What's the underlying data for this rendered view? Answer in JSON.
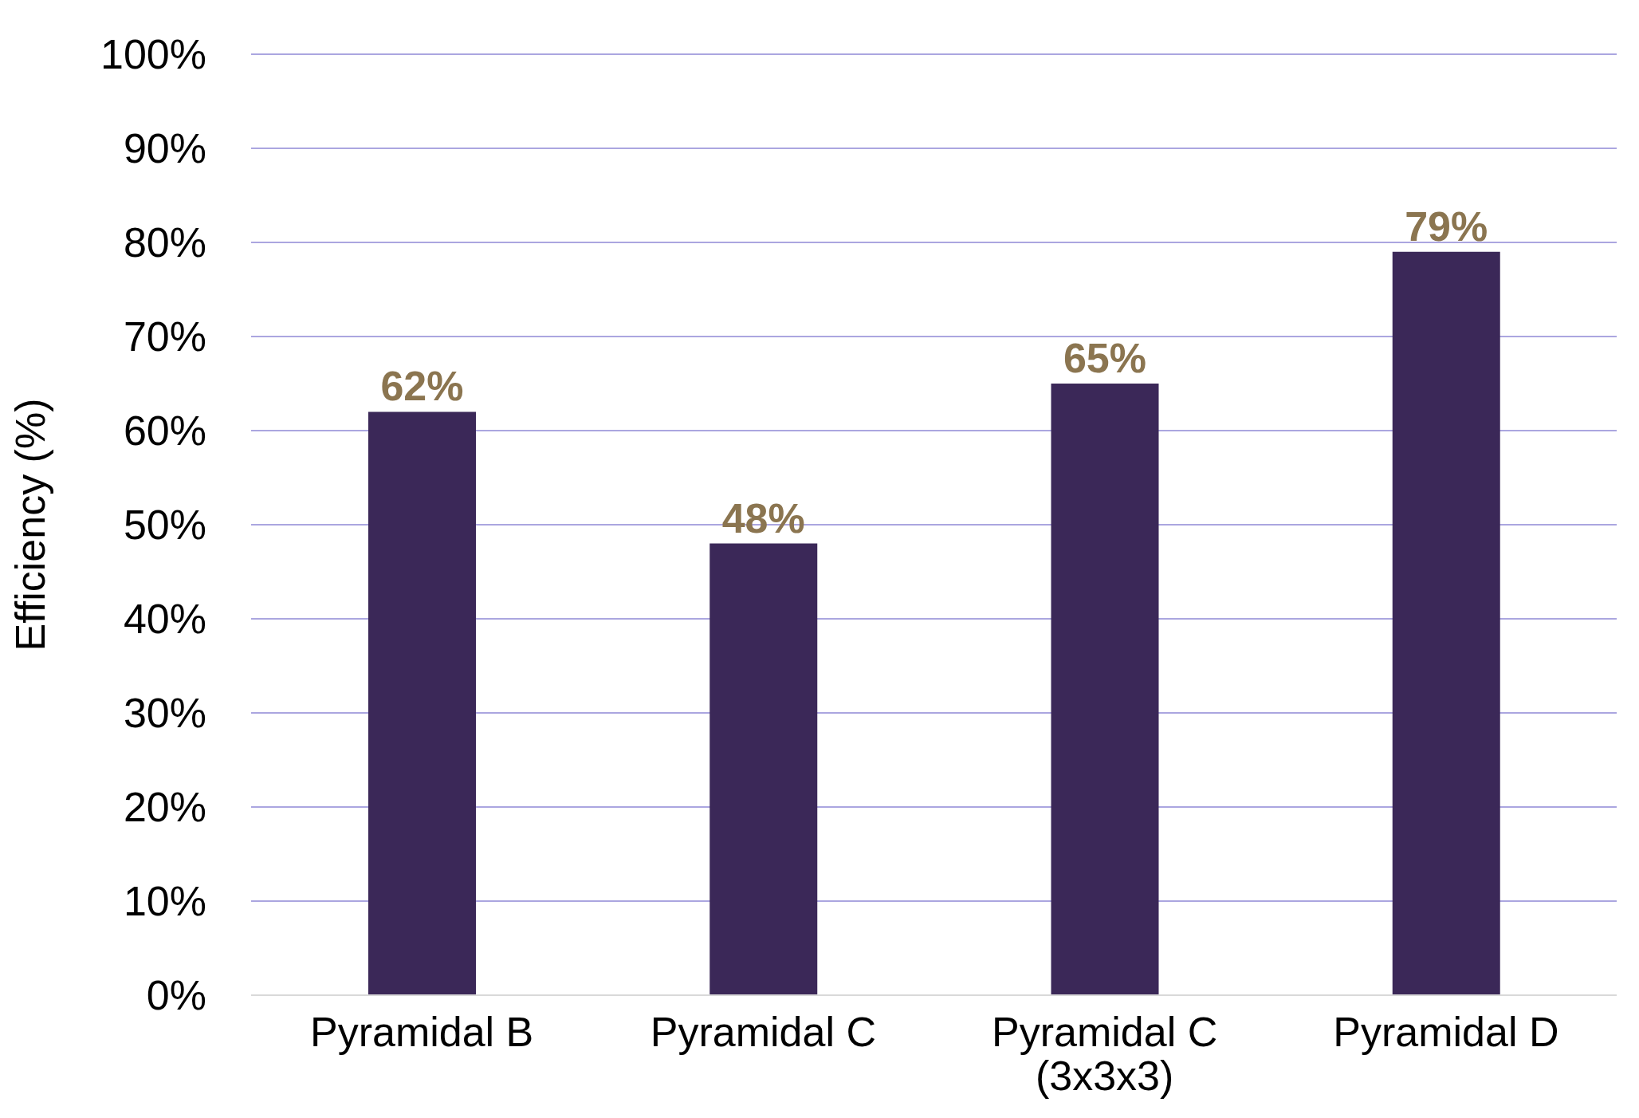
{
  "chart_data": {
    "type": "bar",
    "ylabel": "Efficiency (%)",
    "categories": [
      "Pyramidal B",
      "Pyramidal C",
      "Pyramidal C (3x3x3)",
      "Pyramidal D"
    ],
    "values": [
      62,
      48,
      65,
      79
    ],
    "value_labels": [
      "62%",
      "48%",
      "65%",
      "79%"
    ],
    "color": "#3b2858",
    "ylim": [
      0,
      100
    ],
    "yticks": [
      {
        "value": 0,
        "label": "0%"
      },
      {
        "value": 10,
        "label": "10%"
      },
      {
        "value": 20,
        "label": "20%"
      },
      {
        "value": 30,
        "label": "30%"
      },
      {
        "value": 40,
        "label": "40%"
      },
      {
        "value": 50,
        "label": "50%"
      },
      {
        "value": 60,
        "label": "60%"
      },
      {
        "value": 70,
        "label": "70%"
      },
      {
        "value": 80,
        "label": "80%"
      },
      {
        "value": 90,
        "label": "90%"
      },
      {
        "value": 100,
        "label": "100%"
      }
    ],
    "grid": "y"
  }
}
